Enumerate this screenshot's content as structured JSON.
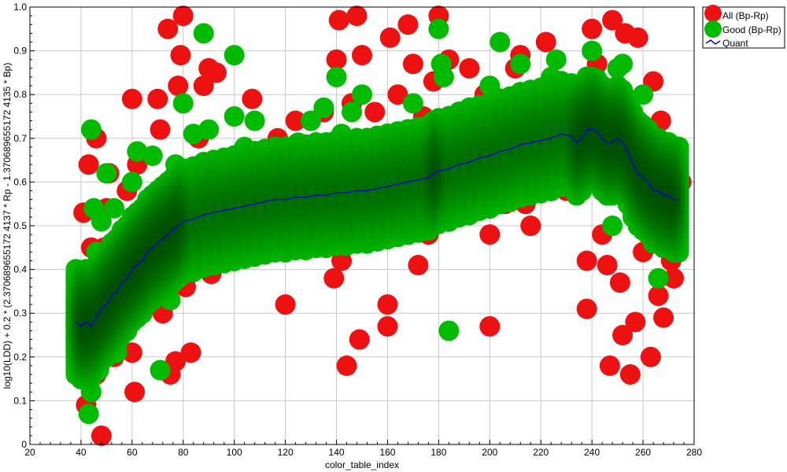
{
  "chart_data": {
    "type": "scatter",
    "xlabel": "color_table_index",
    "ylabel": "log10(LDD) + 0.2 * (2.370689655172 4137 * Rp - 1.370689655172 4135 * Bp)",
    "xlim": [
      20,
      280
    ],
    "ylim": [
      0,
      1.0
    ],
    "x_ticks": [
      20,
      40,
      60,
      80,
      100,
      120,
      140,
      160,
      180,
      200,
      220,
      240,
      260,
      280
    ],
    "y_ticks": [
      0,
      0.1,
      0.2,
      0.3,
      0.4,
      0.5,
      0.6,
      0.7,
      0.8,
      0.9,
      1.0
    ],
    "grid": true,
    "legend_position": "top-right-outside",
    "series": [
      {
        "name": "All (Bp-Rp)",
        "kind": "points",
        "color": "#ee1111",
        "points": [
          [
            38,
            0.29
          ],
          [
            40,
            0.31
          ],
          [
            41,
            0.53
          ],
          [
            42,
            0.09
          ],
          [
            43,
            0.64
          ],
          [
            44,
            0.45
          ],
          [
            45,
            0.25
          ],
          [
            46,
            0.7
          ],
          [
            46,
            0.16
          ],
          [
            48,
            0.02
          ],
          [
            49,
            0.45
          ],
          [
            50,
            0.54
          ],
          [
            51,
            0.62
          ],
          [
            52,
            0.4
          ],
          [
            53,
            0.2
          ],
          [
            55,
            0.47
          ],
          [
            57,
            0.33
          ],
          [
            58,
            0.58
          ],
          [
            59,
            0.34
          ],
          [
            60,
            0.79
          ],
          [
            60,
            0.21
          ],
          [
            61,
            0.12
          ],
          [
            62,
            0.64
          ],
          [
            63,
            0.48
          ],
          [
            64,
            0.3
          ],
          [
            67,
            0.55
          ],
          [
            70,
            0.79
          ],
          [
            71,
            0.72
          ],
          [
            72,
            0.3
          ],
          [
            73,
            0.52
          ],
          [
            74,
            0.95
          ],
          [
            75,
            0.16
          ],
          [
            76,
            0.43
          ],
          [
            77,
            0.19
          ],
          [
            78,
            0.82
          ],
          [
            79,
            0.89
          ],
          [
            80,
            0.98
          ],
          [
            81,
            0.36
          ],
          [
            82,
            0.6
          ],
          [
            83,
            0.21
          ],
          [
            85,
            0.52
          ],
          [
            86,
            0.7
          ],
          [
            88,
            0.82
          ],
          [
            89,
            0.44
          ],
          [
            90,
            0.86
          ],
          [
            91,
            0.39
          ],
          [
            93,
            0.85
          ],
          [
            95,
            0.49
          ],
          [
            100,
            0.53
          ],
          [
            104,
            0.45
          ],
          [
            107,
            0.79
          ],
          [
            110,
            0.47
          ],
          [
            112,
            0.55
          ],
          [
            115,
            0.48
          ],
          [
            117,
            0.7
          ],
          [
            120,
            0.32
          ],
          [
            121,
            0.46
          ],
          [
            124,
            0.74
          ],
          [
            128,
            0.46
          ],
          [
            131,
            0.64
          ],
          [
            133,
            0.49
          ],
          [
            135,
            0.76
          ],
          [
            137,
            0.47
          ],
          [
            139,
            0.38
          ],
          [
            140,
            0.88
          ],
          [
            141,
            0.97
          ],
          [
            142,
            0.42
          ],
          [
            144,
            0.18
          ],
          [
            146,
            0.78
          ],
          [
            148,
            0.98
          ],
          [
            149,
            0.24
          ],
          [
            150,
            0.89
          ],
          [
            152,
            0.5
          ],
          [
            155,
            0.76
          ],
          [
            158,
            0.54
          ],
          [
            160,
            0.32
          ],
          [
            160,
            0.27
          ],
          [
            161,
            0.93
          ],
          [
            164,
            0.8
          ],
          [
            166,
            0.56
          ],
          [
            168,
            0.96
          ],
          [
            170,
            0.87
          ],
          [
            172,
            0.41
          ],
          [
            174,
            0.75
          ],
          [
            176,
            0.48
          ],
          [
            178,
            0.83
          ],
          [
            180,
            0.98
          ],
          [
            181,
            0.62
          ],
          [
            184,
            0.88
          ],
          [
            186,
            0.56
          ],
          [
            190,
            0.7
          ],
          [
            192,
            0.86
          ],
          [
            195,
            0.57
          ],
          [
            198,
            0.8
          ],
          [
            200,
            0.48
          ],
          [
            200,
            0.27
          ],
          [
            203,
            0.62
          ],
          [
            206,
            0.55
          ],
          [
            210,
            0.86
          ],
          [
            212,
            0.89
          ],
          [
            214,
            0.55
          ],
          [
            216,
            0.5
          ],
          [
            219,
            0.76
          ],
          [
            222,
            0.92
          ],
          [
            225,
            0.62
          ],
          [
            227,
            0.82
          ],
          [
            230,
            0.58
          ],
          [
            235,
            0.7
          ],
          [
            238,
            0.42
          ],
          [
            238,
            0.31
          ],
          [
            240,
            0.95
          ],
          [
            242,
            0.87
          ],
          [
            244,
            0.48
          ],
          [
            246,
            0.41
          ],
          [
            247,
            0.18
          ],
          [
            248,
            0.97
          ],
          [
            250,
            0.8
          ],
          [
            251,
            0.37
          ],
          [
            252,
            0.25
          ],
          [
            253,
            0.94
          ],
          [
            255,
            0.16
          ],
          [
            256,
            0.6
          ],
          [
            257,
            0.28
          ],
          [
            258,
            0.93
          ],
          [
            260,
            0.44
          ],
          [
            262,
            0.7
          ],
          [
            263,
            0.2
          ],
          [
            264,
            0.83
          ],
          [
            266,
            0.34
          ],
          [
            267,
            0.74
          ],
          [
            268,
            0.29
          ],
          [
            270,
            0.64
          ],
          [
            271,
            0.42
          ],
          [
            272,
            0.38
          ],
          [
            273,
            0.55
          ],
          [
            275,
            0.6
          ]
        ]
      },
      {
        "name": "Good (Bp-Rp)",
        "kind": "points",
        "color": "#00bb00",
        "points": [
          [
            38,
            0.28
          ],
          [
            39,
            0.38
          ],
          [
            40,
            0.33
          ],
          [
            41,
            0.2
          ],
          [
            42,
            0.26
          ],
          [
            43,
            0.07
          ],
          [
            44,
            0.72
          ],
          [
            44,
            0.12
          ],
          [
            45,
            0.54
          ],
          [
            46,
            0.44
          ],
          [
            47,
            0.17
          ],
          [
            48,
            0.51
          ],
          [
            50,
            0.62
          ],
          [
            51,
            0.27
          ],
          [
            53,
            0.54
          ],
          [
            54,
            0.21
          ],
          [
            56,
            0.47
          ],
          [
            58,
            0.38
          ],
          [
            60,
            0.6
          ],
          [
            60,
            0.29
          ],
          [
            62,
            0.67
          ],
          [
            66,
            0.52
          ],
          [
            68,
            0.66
          ],
          [
            71,
            0.17
          ],
          [
            72,
            0.58
          ],
          [
            75,
            0.33
          ],
          [
            77,
            0.64
          ],
          [
            80,
            0.78
          ],
          [
            84,
            0.71
          ],
          [
            86,
            0.58
          ],
          [
            88,
            0.94
          ],
          [
            90,
            0.72
          ],
          [
            93,
            0.64
          ],
          [
            95,
            0.61
          ],
          [
            100,
            0.89
          ],
          [
            100,
            0.75
          ],
          [
            104,
            0.68
          ],
          [
            108,
            0.74
          ],
          [
            112,
            0.64
          ],
          [
            116,
            0.67
          ],
          [
            120,
            0.6
          ],
          [
            125,
            0.69
          ],
          [
            130,
            0.74
          ],
          [
            135,
            0.77
          ],
          [
            138,
            0.66
          ],
          [
            140,
            0.84
          ],
          [
            142,
            0.71
          ],
          [
            146,
            0.76
          ],
          [
            150,
            0.8
          ],
          [
            155,
            0.59
          ],
          [
            160,
            0.7
          ],
          [
            165,
            0.64
          ],
          [
            170,
            0.78
          ],
          [
            175,
            0.66
          ],
          [
            178,
            0.52
          ],
          [
            180,
            0.95
          ],
          [
            181,
            0.87
          ],
          [
            182,
            0.84
          ],
          [
            184,
            0.26
          ],
          [
            188,
            0.65
          ],
          [
            192,
            0.77
          ],
          [
            196,
            0.6
          ],
          [
            200,
            0.82
          ],
          [
            204,
            0.92
          ],
          [
            208,
            0.72
          ],
          [
            212,
            0.87
          ],
          [
            216,
            0.8
          ],
          [
            220,
            0.66
          ],
          [
            224,
            0.84
          ],
          [
            226,
            0.88
          ],
          [
            230,
            0.74
          ],
          [
            235,
            0.7
          ],
          [
            240,
            0.9
          ],
          [
            242,
            0.82
          ],
          [
            245,
            0.68
          ],
          [
            248,
            0.5
          ],
          [
            250,
            0.86
          ],
          [
            252,
            0.87
          ],
          [
            255,
            0.6
          ],
          [
            258,
            0.74
          ],
          [
            260,
            0.8
          ],
          [
            262,
            0.49
          ],
          [
            264,
            0.56
          ],
          [
            266,
            0.38
          ],
          [
            268,
            0.6
          ],
          [
            270,
            0.69
          ],
          [
            272,
            0.55
          ]
        ]
      },
      {
        "name": "Quant",
        "kind": "line",
        "color": "#0000cc",
        "x": [
          38,
          40,
          42,
          44,
          46,
          48,
          50,
          52,
          54,
          56,
          58,
          60,
          62,
          64,
          66,
          68,
          70,
          72,
          74,
          76,
          78,
          80,
          84,
          88,
          92,
          96,
          100,
          104,
          108,
          112,
          116,
          120,
          124,
          128,
          132,
          136,
          140,
          144,
          148,
          152,
          156,
          160,
          164,
          168,
          172,
          176,
          178,
          180,
          184,
          188,
          192,
          196,
          200,
          204,
          208,
          212,
          216,
          220,
          224,
          228,
          232,
          234,
          236,
          238,
          240,
          242,
          244,
          246,
          248,
          250,
          252,
          254,
          256,
          258,
          260,
          262,
          264,
          266,
          268,
          270,
          272,
          274
        ],
        "y": [
          0.28,
          0.27,
          0.28,
          0.27,
          0.29,
          0.31,
          0.32,
          0.34,
          0.35,
          0.37,
          0.38,
          0.4,
          0.41,
          0.42,
          0.44,
          0.45,
          0.46,
          0.47,
          0.48,
          0.49,
          0.5,
          0.51,
          0.515,
          0.525,
          0.53,
          0.535,
          0.54,
          0.545,
          0.55,
          0.555,
          0.56,
          0.56,
          0.565,
          0.565,
          0.57,
          0.57,
          0.575,
          0.575,
          0.58,
          0.58,
          0.585,
          0.59,
          0.595,
          0.6,
          0.605,
          0.61,
          0.62,
          0.625,
          0.63,
          0.64,
          0.645,
          0.655,
          0.66,
          0.67,
          0.675,
          0.685,
          0.69,
          0.695,
          0.7,
          0.71,
          0.705,
          0.69,
          0.7,
          0.72,
          0.72,
          0.715,
          0.7,
          0.69,
          0.69,
          0.7,
          0.69,
          0.67,
          0.64,
          0.62,
          0.61,
          0.6,
          0.58,
          0.58,
          0.57,
          0.57,
          0.56,
          0.56
        ]
      }
    ],
    "density_band": {
      "x": [
        38,
        40,
        42,
        44,
        46,
        48,
        50,
        52,
        54,
        56,
        58,
        60,
        62,
        64,
        66,
        68,
        70,
        72,
        74,
        76,
        78,
        80,
        84,
        88,
        92,
        96,
        100,
        104,
        108,
        112,
        116,
        120,
        124,
        128,
        132,
        136,
        140,
        144,
        148,
        152,
        156,
        160,
        164,
        168,
        172,
        176,
        178,
        180,
        184,
        188,
        192,
        196,
        200,
        204,
        208,
        212,
        216,
        220,
        224,
        228,
        232,
        234,
        236,
        238,
        240,
        242,
        244,
        246,
        248,
        250,
        252,
        254,
        256,
        258,
        260,
        262,
        264,
        266,
        268,
        270,
        272,
        274
      ],
      "spread": 0.08
    }
  }
}
